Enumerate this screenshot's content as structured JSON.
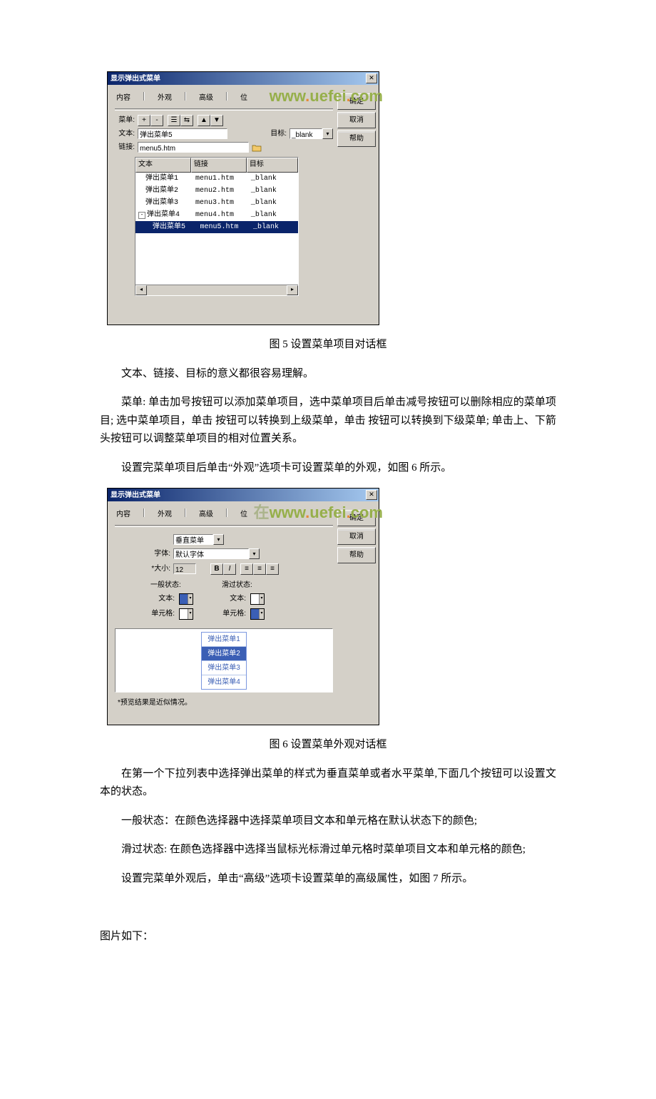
{
  "dialog1": {
    "title": "显示弹出式菜单",
    "watermark_prefix": "在",
    "tabs": [
      "内容",
      "外观",
      "高级",
      "位"
    ],
    "labels": {
      "menu": "菜单:",
      "text": "文本:",
      "link": "链接:",
      "target": "目标:"
    },
    "toolbar_btns": [
      "+",
      "-",
      "☰",
      "⇆",
      "▲",
      "▼"
    ],
    "text_value": "弹出菜单5",
    "link_value": "menu5.htm",
    "target_value": "_blank",
    "columns": [
      "文本",
      "链接",
      "目标"
    ],
    "rows": [
      {
        "text": "弹出菜单1",
        "link": "menu1.htm",
        "target": "_blank",
        "expand": ""
      },
      {
        "text": "弹出菜单2",
        "link": "menu2.htm",
        "target": "_blank",
        "expand": ""
      },
      {
        "text": "弹出菜单3",
        "link": "menu3.htm",
        "target": "_blank",
        "expand": ""
      },
      {
        "text": "弹出菜单4",
        "link": "menu4.htm",
        "target": "_blank",
        "expand": "-"
      },
      {
        "text": "弹出菜单5",
        "link": "menu5.htm",
        "target": "_blank",
        "expand": "",
        "selected": true
      }
    ],
    "btn_ok": "确定",
    "btn_cancel": "取消",
    "btn_help": "帮助"
  },
  "caption1": "图 5  设置菜单项目对话框",
  "para1_1": "文本、链接、目标的意义都很容易理解。",
  "para1_2": "菜单: 单击加号按钮可以添加菜单项目，选中菜单项目后单击减号按钮可以删除相应的菜单项目; 选中菜单项目，单击 按钮可以转换到上级菜单，单击 按钮可以转换到下级菜单; 单击上、下箭头按钮可以调整菜单项目的相对位置关系。",
  "para1_3": "设置完菜单项目后单击“外观”选项卡可设置菜单的外观，如图 6 所示。",
  "dialog2": {
    "title": "显示弹出式菜单",
    "tabs": [
      "内容",
      "外观",
      "高级",
      "位"
    ],
    "type_value": "垂直菜单",
    "labels": {
      "font": "字体:",
      "size": "大小:"
    },
    "font_value": "默认字体",
    "size_value": "12",
    "style_btns": [
      "B",
      "I",
      "≡",
      "≡",
      "≡"
    ],
    "normal_header": "一般状态:",
    "hover_header": "滑过状态:",
    "labels2": {
      "text": "文本:",
      "cell": "单元格:"
    },
    "colors": {
      "normal_text": "#3b5fb5",
      "normal_cell": "#ffffff",
      "hover_text": "#ffffff",
      "hover_cell": "#3b5fb5"
    },
    "preview": [
      "弹出菜单1",
      "弹出菜单2",
      "弹出菜单3",
      "弹出菜单4"
    ],
    "preview_selected": 1,
    "note": "*预览结果是近似情况。",
    "btn_ok": "确定",
    "btn_cancel": "取消",
    "btn_help": "帮助"
  },
  "caption2": "图 6 设置菜单外观对话框",
  "para2_1": "在第一个下拉列表中选择弹出菜单的样式为垂直菜单或者水平菜单,下面几个按钮可以设置文本的状态。",
  "para2_2": "一般状态：在颜色选择器中选择菜单项目文本和单元格在默认状态下的颜色;",
  "para2_3": "滑过状态: 在颜色选择器中选择当鼠标光标滑过单元格时菜单项目文本和单元格的颜色;",
  "para2_4": "设置完菜单外观后，单击“高级”选项卡设置菜单的高级属性，如图 7 所示。",
  "para_tail": "图片如下："
}
